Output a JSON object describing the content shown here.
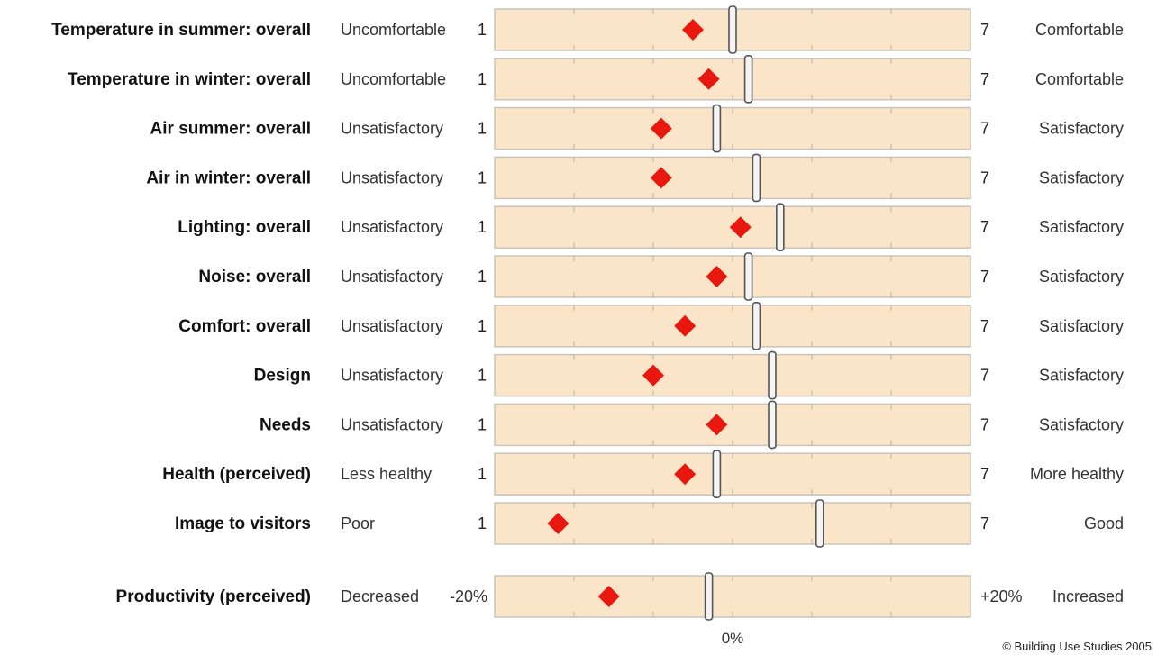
{
  "chart_data": {
    "type": "scale-comparison",
    "scale_min_label": "1",
    "scale_max_label": "7",
    "rows": [
      {
        "label": "Temperature in summer: overall",
        "low_label": "Uncomfortable",
        "high_label": "Comfortable",
        "value": 3.5,
        "benchmark": 4.0
      },
      {
        "label": "Temperature in winter: overall",
        "low_label": "Uncomfortable",
        "high_label": "Comfortable",
        "value": 3.7,
        "benchmark": 4.2
      },
      {
        "label": "Air summer: overall",
        "low_label": "Unsatisfactory",
        "high_label": "Satisfactory",
        "value": 3.1,
        "benchmark": 3.8
      },
      {
        "label": "Air in winter: overall",
        "low_label": "Unsatisfactory",
        "high_label": "Satisfactory",
        "value": 3.1,
        "benchmark": 4.3
      },
      {
        "label": "Lighting: overall",
        "low_label": "Unsatisfactory",
        "high_label": "Satisfactory",
        "value": 4.1,
        "benchmark": 4.6
      },
      {
        "label": "Noise: overall",
        "low_label": "Unsatisfactory",
        "high_label": "Satisfactory",
        "value": 3.8,
        "benchmark": 4.2
      },
      {
        "label": "Comfort: overall",
        "low_label": "Unsatisfactory",
        "high_label": "Satisfactory",
        "value": 3.4,
        "benchmark": 4.3
      },
      {
        "label": "Design",
        "low_label": "Unsatisfactory",
        "high_label": "Satisfactory",
        "value": 3.0,
        "benchmark": 4.5
      },
      {
        "label": "Needs",
        "low_label": "Unsatisfactory",
        "high_label": "Satisfactory",
        "value": 3.8,
        "benchmark": 4.5
      },
      {
        "label": "Health (perceived)",
        "low_label": "Less healthy",
        "high_label": "More healthy",
        "value": 3.4,
        "benchmark": 3.8
      },
      {
        "label": "Image to visitors",
        "low_label": "Poor",
        "high_label": "Good",
        "value": 1.8,
        "benchmark": 5.1
      }
    ],
    "productivity": {
      "label": "Productivity (perceived)",
      "low_label": "Decreased",
      "high_label": "Increased",
      "min_label": "-20%",
      "max_label": "+20%",
      "zero_label": "0%",
      "range": [
        -20,
        20
      ],
      "value": -10.4,
      "benchmark": -2.0
    },
    "marker_color": "#e8180f",
    "bar_fill": "#fbe5c9",
    "bar_stroke": "#c9c3bb",
    "benchmark_color": "#bfbfbf"
  },
  "credit": "© Building Use Studies 2005"
}
